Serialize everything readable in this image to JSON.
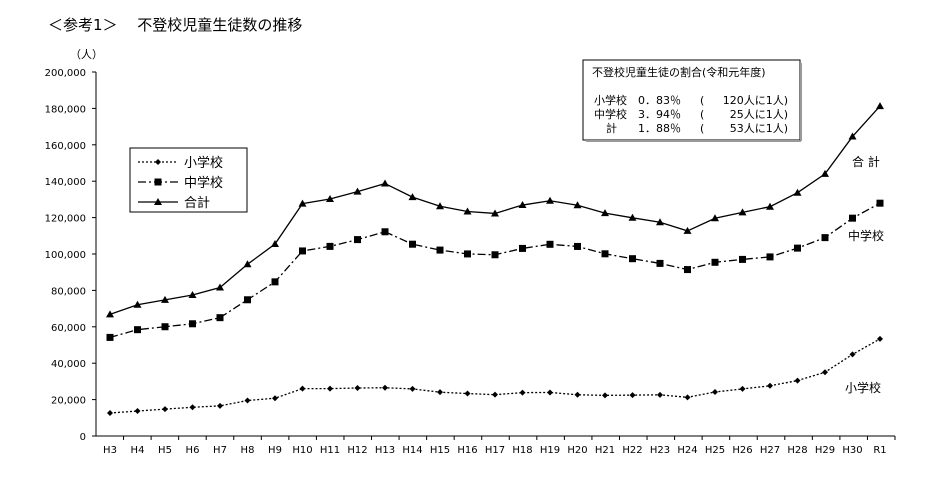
{
  "title": "＜参考1＞　 不登校児童生徒数の推移",
  "chart_data": {
    "type": "line",
    "title": "不登校児童生徒数の推移",
    "ylabel": "（人）",
    "ylim": [
      0,
      200000
    ],
    "yticks": [
      "0",
      "20,000",
      "40,000",
      "60,000",
      "80,000",
      "100,000",
      "120,000",
      "140,000",
      "160,000",
      "180,000",
      "200,000"
    ],
    "ytick_values": [
      0,
      20000,
      40000,
      60000,
      80000,
      100000,
      120000,
      140000,
      160000,
      180000,
      200000
    ],
    "categories": [
      "H3",
      "H4",
      "H5",
      "H6",
      "H7",
      "H8",
      "H9",
      "H10",
      "H11",
      "H12",
      "H13",
      "H14",
      "H15",
      "H16",
      "H17",
      "H18",
      "H19",
      "H20",
      "H21",
      "H22",
      "H23",
      "H24",
      "H25",
      "H26",
      "H27",
      "H28",
      "H29",
      "H30",
      "R1"
    ],
    "legend_position": "upper-left",
    "series": [
      {
        "name": "小学校",
        "end_label": "小学校",
        "marker": "diamond",
        "dash": "dotted",
        "values": [
          12645,
          13710,
          14769,
          15786,
          16569,
          19498,
          20765,
          26017,
          26047,
          26373,
          26511,
          25869,
          24077,
          23318,
          22709,
          23825,
          23927,
          22652,
          22327,
          22463,
          22622,
          21243,
          24175,
          25864,
          27583,
          30448,
          35032,
          44841,
          53350
        ]
      },
      {
        "name": "中学校",
        "end_label": "中学校",
        "marker": "square",
        "dash": "dashdot",
        "values": [
          54172,
          58421,
          60039,
          61663,
          65022,
          74853,
          84701,
          101675,
          104180,
          107913,
          112211,
          105383,
          102149,
          100040,
          99578,
          103069,
          105328,
          104153,
          100105,
          97428,
          94836,
          91446,
          95442,
          97033,
          98408,
          103235,
          108999,
          119687,
          127922
        ]
      },
      {
        "name": "合計",
        "end_label": "合 計",
        "marker": "triangle",
        "dash": "solid",
        "values": [
          66817,
          72131,
          74808,
          77449,
          81591,
          94351,
          105466,
          127692,
          130227,
          134286,
          138722,
          131252,
          126226,
          123358,
          122287,
          126894,
          129255,
          126805,
          122432,
          119891,
          117458,
          112689,
          119617,
          122897,
          125991,
          133683,
          144031,
          164528,
          181272
        ]
      }
    ],
    "annotation": {
      "title": "不登校児童生徒の割合(令和元年度)",
      "rows": [
        {
          "label": "小学校",
          "pct": "0．83％",
          "paren": "(",
          "ratio": "120人に1人)"
        },
        {
          "label": "中学校",
          "pct": "3．94％",
          "paren": "(",
          "ratio": "25人に1人)"
        },
        {
          "label": "計",
          "pct": "1．88％",
          "paren": "(",
          "ratio": "53人に1人)"
        }
      ]
    }
  }
}
